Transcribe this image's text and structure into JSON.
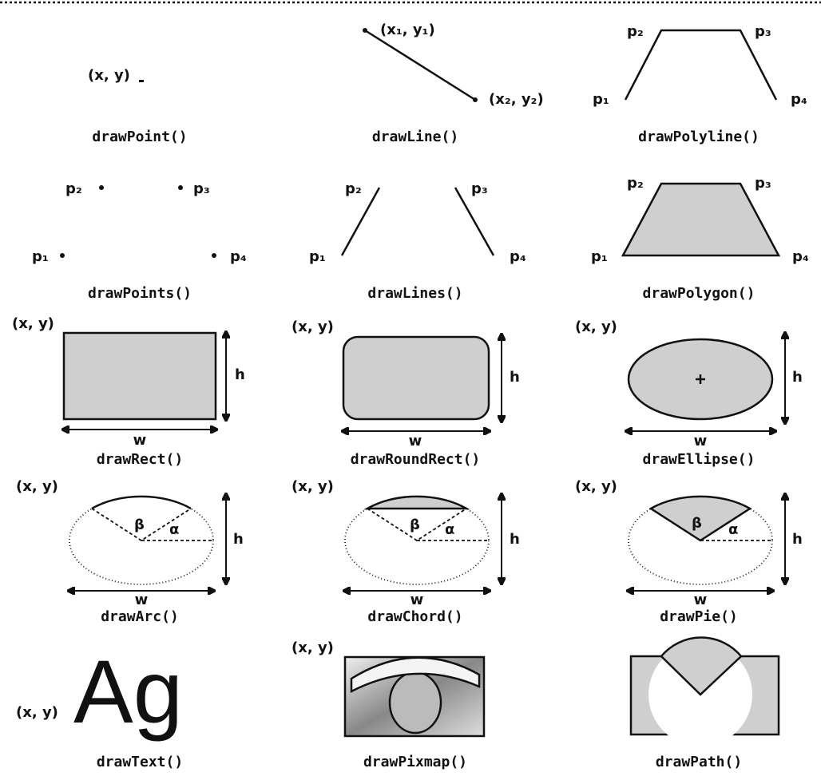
{
  "cells": [
    {
      "caption": "drawPoint()",
      "labels": [
        "(x, y)"
      ]
    },
    {
      "caption": "drawLine()",
      "labels": [
        "(x₁, y₁)",
        "(x₂, y₂)"
      ]
    },
    {
      "caption": "drawPolyline()",
      "labels": [
        "p₁",
        "p₂",
        "p₃",
        "p₄"
      ]
    },
    {
      "caption": "drawPoints()",
      "labels": [
        "p₁",
        "p₂",
        "p₃",
        "p₄"
      ]
    },
    {
      "caption": "drawLines()",
      "labels": [
        "p₁",
        "p₂",
        "p₃",
        "p₄"
      ]
    },
    {
      "caption": "drawPolygon()",
      "labels": [
        "p₁",
        "p₂",
        "p₃",
        "p₄"
      ]
    },
    {
      "caption": "drawRect()",
      "labels": [
        "(x, y)",
        "h",
        "w"
      ]
    },
    {
      "caption": "drawRoundRect()",
      "labels": [
        "(x, y)",
        "h",
        "w"
      ]
    },
    {
      "caption": "drawEllipse()",
      "labels": [
        "(x, y)",
        "h",
        "w"
      ]
    },
    {
      "caption": "drawArc()",
      "labels": [
        "(x, y)",
        "h",
        "w",
        "β",
        "α"
      ]
    },
    {
      "caption": "drawChord()",
      "labels": [
        "(x, y)",
        "h",
        "w",
        "β",
        "α"
      ]
    },
    {
      "caption": "drawPie()",
      "labels": [
        "(x, y)",
        "h",
        "w",
        "β",
        "α"
      ]
    },
    {
      "caption": "drawText()",
      "labels": [
        "(x, y)",
        "Ag"
      ]
    },
    {
      "caption": "drawPixmap()",
      "labels": [
        "(x, y)"
      ]
    },
    {
      "caption": "drawPath()"
    }
  ]
}
